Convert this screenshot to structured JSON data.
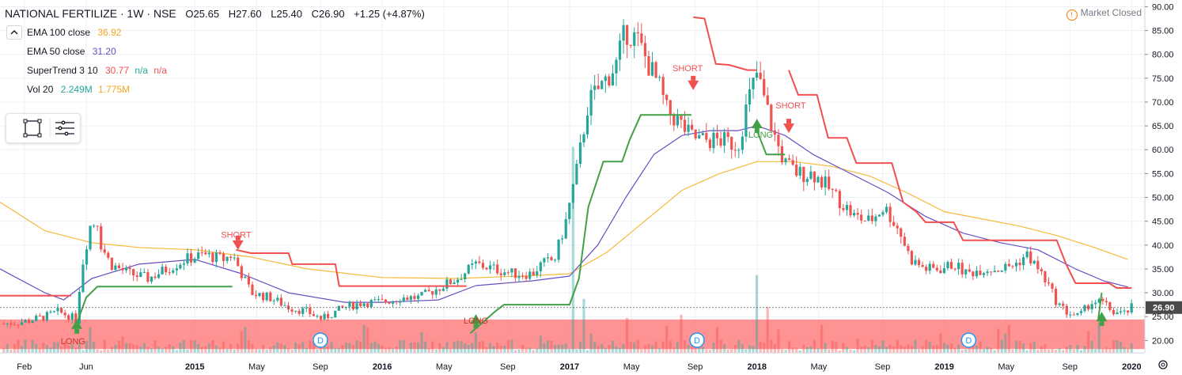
{
  "header": {
    "symbol": "NATIONAL FERTILIZE · 1W · NSE",
    "open": "O25.65",
    "high": "H27.60",
    "low": "L25.40",
    "close": "C26.90",
    "change": "+1.25 (+4.87%)"
  },
  "indicators": {
    "ema100": {
      "label": "EMA 100 close",
      "value": "36.92",
      "color": "#f5b93a"
    },
    "ema50": {
      "label": "EMA 50 close",
      "value": "31.20",
      "color": "#6a4cc2"
    },
    "supertrend": {
      "label": "SuperTrend 3 10",
      "value": "30.77",
      "na1": "n/a",
      "na2": "n/a",
      "color": "#f05050"
    },
    "vol": {
      "label": "Vol 20",
      "value": "2.249M",
      "value2": "1.775M"
    }
  },
  "market_status": "Market Closed",
  "price_tag": "26.90",
  "chart_data": {
    "type": "candlestick",
    "title": "NATIONAL FERTILIZE · 1W · NSE",
    "y_axis": {
      "ticks": [
        20,
        25,
        30,
        35,
        40,
        45,
        50,
        55,
        60,
        65,
        70,
        75,
        80,
        85,
        90
      ],
      "range": [
        17.4,
        91.4
      ],
      "position": "right"
    },
    "x_axis": {
      "ticks": [
        "Feb",
        "Jun",
        "2015",
        "May",
        "Sep",
        "2016",
        "May",
        "Sep",
        "2017",
        "May",
        "Sep",
        "2018",
        "May",
        "Sep",
        "2019",
        "May",
        "Sep",
        "2020"
      ],
      "tick_time": [
        2014.09,
        2014.42,
        2015.0,
        2015.33,
        2015.67,
        2016.0,
        2016.33,
        2016.67,
        2017.0,
        2017.33,
        2017.67,
        2018.0,
        2018.33,
        2018.67,
        2019.0,
        2019.33,
        2019.67,
        2020.0
      ],
      "range": [
        2013.96,
        2020.07
      ]
    },
    "price_series": [
      [
        2013.98,
        23.5
      ],
      [
        2014.1,
        24
      ],
      [
        2014.2,
        25
      ],
      [
        2014.27,
        26
      ],
      [
        2014.34,
        25
      ],
      [
        2014.37,
        24
      ],
      [
        2014.39,
        34
      ],
      [
        2014.41,
        38
      ],
      [
        2014.44,
        44
      ],
      [
        2014.48,
        45
      ],
      [
        2014.5,
        40
      ],
      [
        2014.55,
        36
      ],
      [
        2014.65,
        34
      ],
      [
        2014.75,
        33
      ],
      [
        2014.85,
        35
      ],
      [
        2014.95,
        37
      ],
      [
        2015.05,
        38
      ],
      [
        2015.15,
        37
      ],
      [
        2015.2,
        38
      ],
      [
        2015.25,
        34
      ],
      [
        2015.3,
        30
      ],
      [
        2015.4,
        29
      ],
      [
        2015.5,
        27
      ],
      [
        2015.6,
        26
      ],
      [
        2015.68,
        24.5
      ],
      [
        2015.8,
        27
      ],
      [
        2015.9,
        28
      ],
      [
        2016.0,
        28
      ],
      [
        2016.1,
        29
      ],
      [
        2016.2,
        29
      ],
      [
        2016.3,
        31
      ],
      [
        2016.4,
        33
      ],
      [
        2016.5,
        36
      ],
      [
        2016.6,
        35
      ],
      [
        2016.7,
        34
      ],
      [
        2016.8,
        34
      ],
      [
        2016.85,
        36
      ],
      [
        2016.92,
        37
      ],
      [
        2016.98,
        45
      ],
      [
        2017.04,
        56
      ],
      [
        2017.1,
        70
      ],
      [
        2017.18,
        74
      ],
      [
        2017.25,
        78
      ],
      [
        2017.3,
        85
      ],
      [
        2017.36,
        83
      ],
      [
        2017.42,
        78
      ],
      [
        2017.48,
        73
      ],
      [
        2017.52,
        68
      ],
      [
        2017.58,
        66
      ],
      [
        2017.64,
        63
      ],
      [
        2017.7,
        62
      ],
      [
        2017.8,
        62
      ],
      [
        2017.9,
        61
      ],
      [
        2017.95,
        70
      ],
      [
        2018.0,
        76
      ],
      [
        2018.05,
        69
      ],
      [
        2018.1,
        62
      ],
      [
        2018.15,
        57
      ],
      [
        2018.22,
        55
      ],
      [
        2018.3,
        55
      ],
      [
        2018.38,
        52
      ],
      [
        2018.45,
        49
      ],
      [
        2018.52,
        46
      ],
      [
        2018.6,
        45
      ],
      [
        2018.68,
        48
      ],
      [
        2018.76,
        43
      ],
      [
        2018.82,
        37
      ],
      [
        2018.9,
        35
      ],
      [
        2018.98,
        35
      ],
      [
        2019.05,
        36
      ],
      [
        2019.12,
        34
      ],
      [
        2019.2,
        35
      ],
      [
        2019.3,
        35
      ],
      [
        2019.38,
        36
      ],
      [
        2019.44,
        38
      ],
      [
        2019.5,
        35
      ],
      [
        2019.55,
        32
      ],
      [
        2019.6,
        28
      ],
      [
        2019.65,
        26
      ],
      [
        2019.72,
        25
      ],
      [
        2019.78,
        28
      ],
      [
        2019.84,
        28
      ],
      [
        2019.9,
        26
      ],
      [
        2019.96,
        25.5
      ],
      [
        2020.0,
        26.9
      ]
    ],
    "ema100_series": [
      [
        2013.96,
        49
      ],
      [
        2014.2,
        43
      ],
      [
        2014.45,
        40.5
      ],
      [
        2014.7,
        39.5
      ],
      [
        2015.0,
        39
      ],
      [
        2015.3,
        37.5
      ],
      [
        2015.6,
        35
      ],
      [
        2016.0,
        33.2
      ],
      [
        2016.4,
        33
      ],
      [
        2016.8,
        33.6
      ],
      [
        2017.0,
        34
      ],
      [
        2017.2,
        38.5
      ],
      [
        2017.4,
        45
      ],
      [
        2017.6,
        51.5
      ],
      [
        2017.8,
        55
      ],
      [
        2018.0,
        57.5
      ],
      [
        2018.2,
        57.5
      ],
      [
        2018.4,
        56.5
      ],
      [
        2018.6,
        54.5
      ],
      [
        2018.8,
        51
      ],
      [
        2019.0,
        47
      ],
      [
        2019.2,
        45.5
      ],
      [
        2019.4,
        44
      ],
      [
        2019.6,
        42
      ],
      [
        2019.8,
        39.5
      ],
      [
        2019.98,
        37
      ]
    ],
    "ema50_series": [
      [
        2013.96,
        35
      ],
      [
        2014.2,
        30
      ],
      [
        2014.3,
        28.5
      ],
      [
        2014.45,
        33
      ],
      [
        2014.7,
        36
      ],
      [
        2015.0,
        37
      ],
      [
        2015.25,
        34
      ],
      [
        2015.5,
        30
      ],
      [
        2015.8,
        28
      ],
      [
        2016.0,
        28
      ],
      [
        2016.3,
        28.5
      ],
      [
        2016.5,
        31.5
      ],
      [
        2016.8,
        32.5
      ],
      [
        2017.0,
        33.5
      ],
      [
        2017.15,
        40
      ],
      [
        2017.3,
        50
      ],
      [
        2017.45,
        59
      ],
      [
        2017.6,
        63
      ],
      [
        2017.75,
        64
      ],
      [
        2017.9,
        64
      ],
      [
        2018.0,
        65
      ],
      [
        2018.15,
        63
      ],
      [
        2018.3,
        59
      ],
      [
        2018.5,
        55
      ],
      [
        2018.7,
        51
      ],
      [
        2018.9,
        46
      ],
      [
        2019.1,
        42.5
      ],
      [
        2019.3,
        40.5
      ],
      [
        2019.5,
        39
      ],
      [
        2019.7,
        35
      ],
      [
        2019.85,
        32.5
      ],
      [
        2019.98,
        31.2
      ]
    ],
    "supertrend_series": [
      {
        "color": "#f05050",
        "points": [
          [
            2013.96,
            29.4
          ],
          [
            2014.34,
            29.4
          ]
        ]
      },
      {
        "color": "#43a047",
        "points": [
          [
            2014.36,
            22.5
          ],
          [
            2014.42,
            29
          ],
          [
            2014.48,
            31.3
          ],
          [
            2015.2,
            31.3
          ]
        ]
      },
      {
        "color": "#f05050",
        "points": [
          [
            2015.22,
            39
          ],
          [
            2015.3,
            38.3
          ],
          [
            2015.5,
            38.3
          ],
          [
            2015.52,
            36
          ],
          [
            2015.75,
            36
          ],
          [
            2015.77,
            31.4
          ],
          [
            2016.45,
            31.4
          ]
        ]
      },
      {
        "color": "#43a047",
        "points": [
          [
            2016.47,
            21.5
          ],
          [
            2016.6,
            26
          ],
          [
            2016.65,
            27.5
          ],
          [
            2017.0,
            27.5
          ],
          [
            2017.05,
            33
          ],
          [
            2017.1,
            48
          ],
          [
            2017.18,
            57.5
          ],
          [
            2017.28,
            57.5
          ],
          [
            2017.32,
            62
          ],
          [
            2017.38,
            67.3
          ],
          [
            2017.65,
            67.3
          ]
        ]
      },
      {
        "color": "#f05050",
        "points": [
          [
            2017.66,
            87.8
          ],
          [
            2017.72,
            87.5
          ],
          [
            2017.78,
            78
          ],
          [
            2017.85,
            77.8
          ],
          [
            2017.95,
            76.7
          ],
          [
            2018.0,
            76.7
          ]
        ]
      },
      {
        "color": "#43a047",
        "points": [
          [
            2018.0,
            64
          ],
          [
            2018.05,
            59
          ],
          [
            2018.15,
            59
          ]
        ]
      },
      {
        "color": "#f05050",
        "points": [
          [
            2018.17,
            76.7
          ],
          [
            2018.22,
            71.5
          ],
          [
            2018.32,
            71.5
          ],
          [
            2018.38,
            62.5
          ],
          [
            2018.48,
            62.5
          ],
          [
            2018.53,
            57.2
          ],
          [
            2018.72,
            57.2
          ],
          [
            2018.78,
            49
          ],
          [
            2018.85,
            47
          ],
          [
            2018.9,
            44.8
          ],
          [
            2019.05,
            44.8
          ],
          [
            2019.1,
            41
          ],
          [
            2019.6,
            41
          ],
          [
            2019.65,
            36
          ],
          [
            2019.7,
            32
          ],
          [
            2019.88,
            32
          ],
          [
            2019.92,
            31
          ],
          [
            2020.0,
            31
          ]
        ]
      },
      {
        "color": "#43a047",
        "points": [
          [
            2019.82,
            24
          ],
          [
            2019.84,
            30
          ]
        ]
      }
    ],
    "signals": [
      {
        "type": "LONG",
        "time": 2014.37,
        "price": 24.4
      },
      {
        "type": "SHORT",
        "time": 2015.23,
        "price": 39.0
      },
      {
        "type": "LONG",
        "time": 2016.5,
        "price": 25.5
      },
      {
        "type": "SHORT",
        "time": 2017.66,
        "price": 72.5
      },
      {
        "type": "LONG",
        "time": 2018.0,
        "price": 66.5
      },
      {
        "type": "SHORT",
        "time": 2018.17,
        "price": 63.5
      },
      {
        "type": "LONG",
        "time": 2019.84,
        "price": 26.0
      }
    ],
    "signal_labels": [
      {
        "text": "LONG",
        "time": 2014.35,
        "price": 19.2
      },
      {
        "text": "SHORT",
        "time": 2015.22,
        "price": 41.5
      },
      {
        "text": "LONG",
        "time": 2016.5,
        "price": 23.5
      },
      {
        "text": "SHORT",
        "time": 2017.63,
        "price": 76.5
      },
      {
        "text": "LONG",
        "time": 2018.02,
        "price": 62.5
      },
      {
        "text": "SHORT",
        "time": 2018.18,
        "price": 68.7
      }
    ],
    "dividends": [
      {
        "label": "D",
        "time": 2015.67
      },
      {
        "label": "D",
        "time": 2017.68
      },
      {
        "label": "D",
        "time": 2019.13
      }
    ],
    "support_zone": [
      18.2,
      24.4
    ],
    "last_price": 26.9,
    "volume_spikes": [
      [
        2014.44,
        0.12
      ],
      [
        2017.02,
        0.55
      ],
      [
        2017.08,
        0.3
      ],
      [
        2017.3,
        0.18
      ],
      [
        2017.6,
        0.2
      ],
      [
        2018.0,
        0.45
      ],
      [
        2018.05,
        0.25
      ],
      [
        2019.83,
        0.15
      ]
    ]
  },
  "colors": {
    "up": "#26a69a",
    "down": "#ef5350",
    "grid": "#eef0f3",
    "zone": "#ff7f7f",
    "green": "#43a047",
    "red": "#f05050"
  }
}
